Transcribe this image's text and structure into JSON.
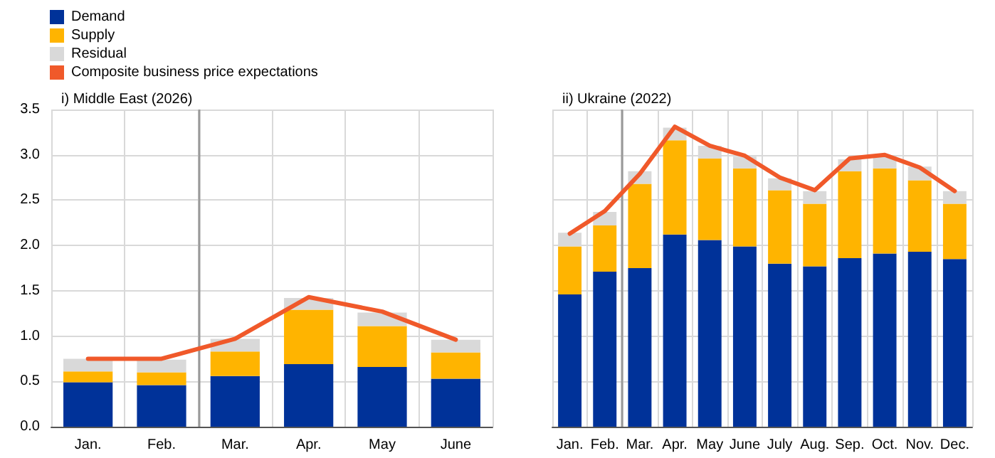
{
  "chart_data": [
    {
      "type": "bar",
      "title": "i) Middle East (2026)",
      "categories": [
        "Jan.",
        "Feb.",
        "Mar.",
        "Apr.",
        "May",
        "June"
      ],
      "stacked": true,
      "legend": "top left",
      "grid": true,
      "ylim": [
        0,
        3.5
      ],
      "yticks": [
        {
          "value": 0,
          "label": "0.0"
        },
        {
          "value": 0.5,
          "label": "0.5"
        },
        {
          "value": 1,
          "label": "1.0"
        },
        {
          "value": 1.5,
          "label": "1.5"
        },
        {
          "value": 2,
          "label": "2.0"
        },
        {
          "value": 2.5,
          "label": "2.5"
        },
        {
          "value": 3,
          "label": "3.0"
        },
        {
          "value": 3.5,
          "label": "3.5"
        }
      ],
      "marker": "none",
      "line_style": "solid",
      "ref_lines": [
        {
          "axis": "x",
          "value": "Mar.",
          "color": "#999999"
        }
      ],
      "series": [
        {
          "name": "Demand",
          "color": "#003299",
          "values": [
            0.49,
            0.46,
            0.56,
            0.69,
            0.66,
            0.53
          ]
        },
        {
          "name": "Supply",
          "color": "#ffb400",
          "values": [
            0.12,
            0.14,
            0.27,
            0.6,
            0.45,
            0.29
          ]
        },
        {
          "name": "Residual",
          "color": "#d9d9d9",
          "values": [
            0.14,
            0.14,
            0.14,
            0.13,
            0.15,
            0.14
          ]
        },
        {
          "name": "Composite business price expectations",
          "type": "line",
          "color": "#f0592a",
          "values": [
            0.75,
            0.75,
            0.97,
            1.43,
            1.27,
            0.96
          ]
        }
      ]
    },
    {
      "type": "bar",
      "title": "ii) Ukraine (2022)",
      "categories": [
        "Jan.",
        "Feb.",
        "Mar.",
        "Apr.",
        "May",
        "June",
        "July",
        "Aug.",
        "Sep.",
        "Oct.",
        "Nov.",
        "Dec."
      ],
      "stacked": true,
      "grid": true,
      "ylim": [
        0,
        3.5
      ],
      "yticks": [
        0,
        0.5,
        1,
        1.5,
        2,
        2.5,
        3,
        3.5
      ],
      "tick_labels": "x",
      "marker": "none",
      "line_style": "solid",
      "ref_lines": [
        {
          "axis": "x",
          "value": "Mar.",
          "color": "#999999"
        }
      ],
      "series": [
        {
          "color": "#003299",
          "values": [
            1.46,
            1.71,
            1.75,
            2.12,
            2.06,
            1.99,
            1.8,
            1.77,
            1.86,
            1.91,
            1.93,
            1.85
          ]
        },
        {
          "color": "#ffb400",
          "values": [
            0.53,
            0.51,
            0.93,
            1.04,
            0.9,
            0.86,
            0.81,
            0.69,
            0.96,
            0.94,
            0.79,
            0.61
          ]
        },
        {
          "color": "#d9d9d9",
          "values": [
            0.15,
            0.15,
            0.14,
            0.14,
            0.14,
            0.13,
            0.13,
            0.14,
            0.13,
            0.13,
            0.15,
            0.14
          ]
        },
        {
          "type": "line",
          "color": "#f0592a",
          "values": [
            2.13,
            2.38,
            2.79,
            3.31,
            3.1,
            2.99,
            2.75,
            2.61,
            2.96,
            3.0,
            2.86,
            2.6
          ]
        }
      ]
    }
  ]
}
